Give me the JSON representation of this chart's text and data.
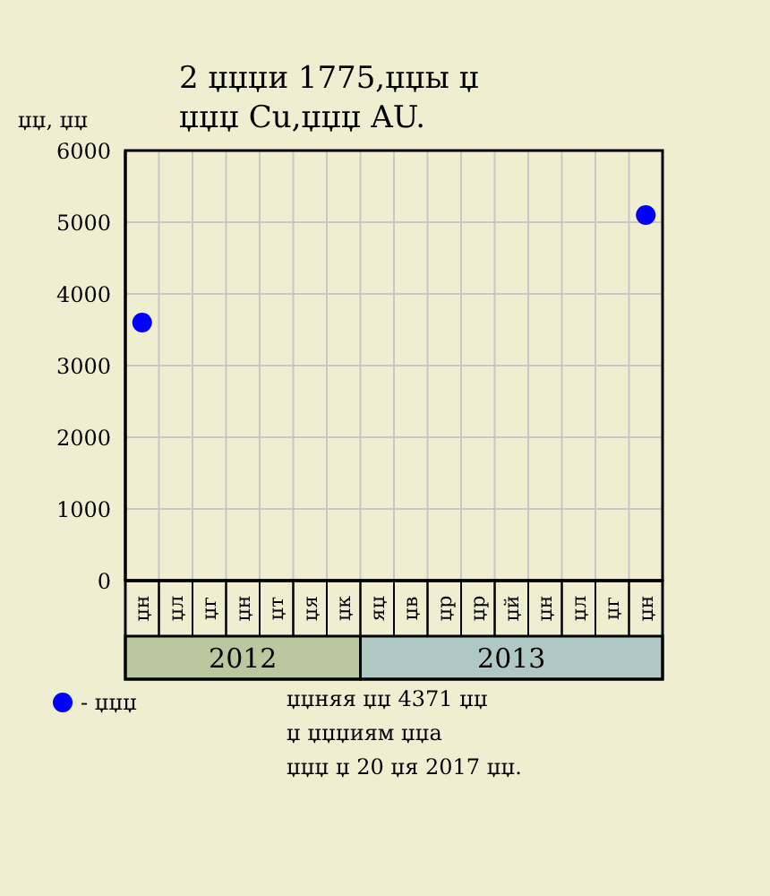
{
  "chart_data": {
    "type": "scatter",
    "title": "2 џџџи 1775,џџы џ\nџџџ Cu,џџџ AU.",
    "ylabel": "џџ, џџ",
    "categories": [
      "џн",
      "џл",
      "џг",
      "џн",
      "џт",
      "џя",
      "џк",
      "яџ",
      "џв",
      "џр",
      "џр",
      "џй",
      "џн",
      "џл",
      "џг",
      "џн"
    ],
    "series": [
      {
        "name": "- џџџ",
        "color": "#0000ff",
        "values": [
          3600,
          null,
          null,
          null,
          null,
          null,
          null,
          null,
          null,
          null,
          null,
          null,
          null,
          null,
          null,
          5100
        ]
      }
    ],
    "ylim": [
      0,
      6000
    ],
    "yticks": [
      0,
      1000,
      2000,
      3000,
      4000,
      5000,
      6000
    ],
    "grid": true,
    "legend": "bottom left",
    "marker": "circle",
    "annotations": [
      "2012",
      "2013",
      "џџняя џџ 4371 џџ\nџ џџџиям џџа\nџџџ џ 20 џя 2017 џџ."
    ]
  }
}
